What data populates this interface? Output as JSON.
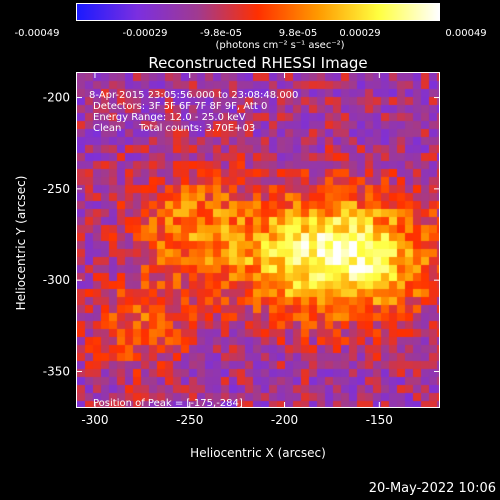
{
  "colorbar": {
    "ticks": [
      "-0.00049",
      "-0.00029",
      "-9.8e-05",
      "9.8e-05",
      "0.00029",
      "0.00049"
    ],
    "unit": "(photons cm⁻² s⁻¹ asec⁻²)",
    "colors": [
      "#1a1aff",
      "#7b2fe0",
      "#a03a90",
      "#ff3000",
      "#ff9a00",
      "#ffff40",
      "#ffffff"
    ]
  },
  "chart_data": {
    "type": "heatmap",
    "title": "Reconstructed RHESSI Image",
    "xlabel": "Heliocentric X (arcsec)",
    "ylabel": "Heliocentric Y (arcsec)",
    "xlim": [
      -310,
      -118
    ],
    "ylim": [
      -370,
      -186
    ],
    "xticks": [
      -300,
      -250,
      -200,
      -150
    ],
    "yticks": [
      -200,
      -250,
      -300,
      -350
    ],
    "color_range": [
      -0.00049,
      0.00049
    ],
    "peak": {
      "x": -175,
      "y": -284
    },
    "annotations": {
      "time_range": "8-Apr-2015 23:05:56.000 to 23:08:48.000",
      "detectors": "Detectors: 3F 5F 6F 7F 8F 9F, Att 0",
      "energy": "Energy Range: 12.0 - 25.0 keV",
      "clean_label": "Clean",
      "total_counts": "Total counts: 3.70E+03",
      "peak_position": "Position of Peak = [-175,-284]"
    }
  },
  "footer": {
    "date": "20-May-2022 10:06"
  }
}
